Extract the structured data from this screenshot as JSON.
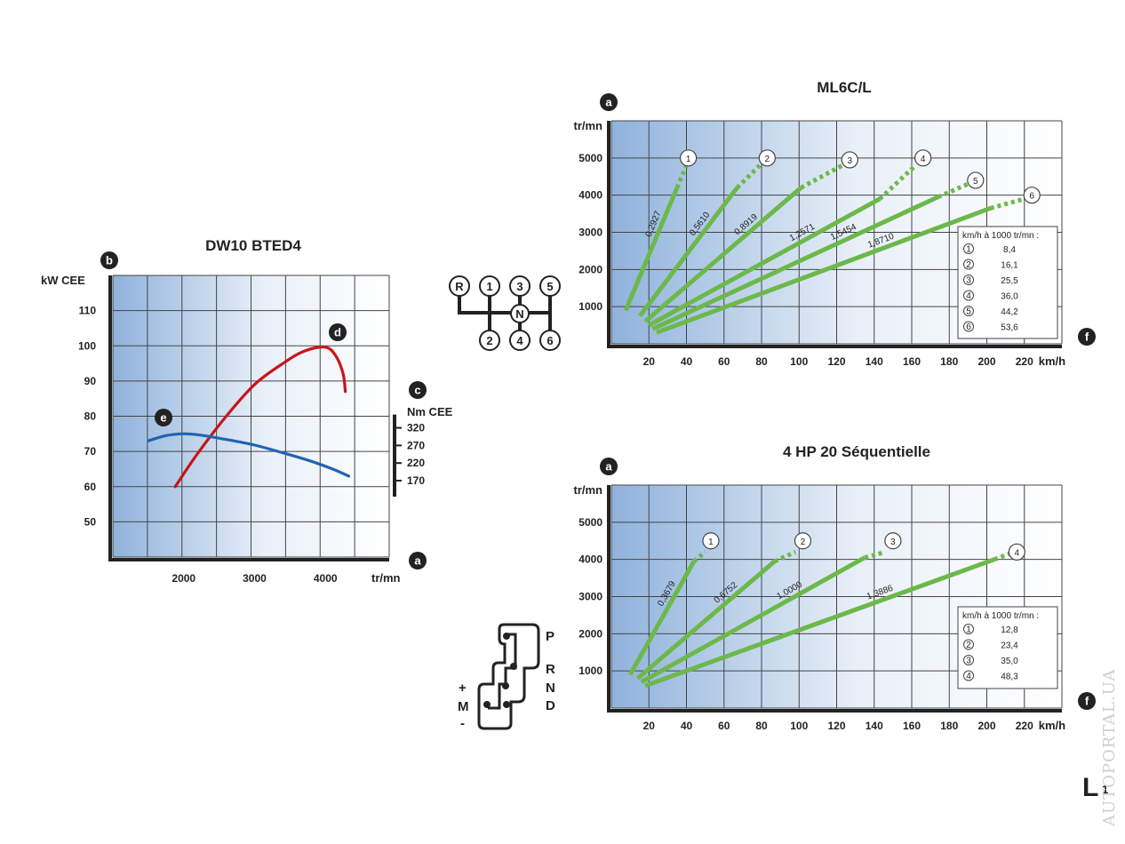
{
  "colors": {
    "grid_line": "#444444",
    "panel_left": "#8fb2dc",
    "panel_right": "#ffffff",
    "power": "#c8151b",
    "torque": "#1f64b0",
    "gear_line": "#6cb84a",
    "badge": "#222222"
  },
  "chart_data": [
    {
      "id": "engine",
      "type": "line",
      "title": "DW10 BTED4",
      "xlabel": "tr/mn",
      "ylabel": "kW CEE",
      "y2label": "Nm CEE",
      "xlim": [
        1000,
        4900
      ],
      "ylim": [
        40,
        120
      ],
      "xticks": [
        2000,
        3000,
        4000
      ],
      "yticks": [
        50,
        60,
        70,
        80,
        90,
        100,
        110
      ],
      "y2ticks": [
        320,
        270,
        220,
        170
      ],
      "y2_from_y": {
        "y_at_170": 61.7,
        "y_per_nm": 0.1
      },
      "badges": {
        "y": "b",
        "y2": "c",
        "x": "a",
        "power": "d",
        "torque": "e"
      },
      "series": [
        {
          "key": "power",
          "points": [
            [
              1880,
              60
            ],
            [
              2200,
              69.5
            ],
            [
              2600,
              80
            ],
            [
              3000,
              89
            ],
            [
              3400,
              95
            ],
            [
              3700,
              98.5
            ],
            [
              4000,
              99.6
            ],
            [
              4150,
              97
            ],
            [
              4250,
              92
            ],
            [
              4280,
              87
            ]
          ]
        },
        {
          "key": "torque",
          "points": [
            [
              1500,
              73
            ],
            [
              1750,
              74.5
            ],
            [
              2000,
              75
            ],
            [
              2250,
              74.6
            ],
            [
              2600,
              73.4
            ],
            [
              3000,
              71.8
            ],
            [
              3400,
              69.6
            ],
            [
              3800,
              67.2
            ],
            [
              4100,
              65
            ],
            [
              4330,
              63
            ]
          ]
        }
      ]
    },
    {
      "id": "manual",
      "type": "line",
      "title": "ML6C/L",
      "xlabel": "km/h",
      "ylabel": "tr/mn",
      "xlim": [
        0,
        240
      ],
      "ylim": [
        0,
        6000
      ],
      "xticks": [
        20,
        40,
        60,
        80,
        100,
        120,
        140,
        160,
        180,
        200,
        220
      ],
      "yticks": [
        1000,
        2000,
        3000,
        4000,
        5000
      ],
      "badges": {
        "y": "a",
        "x": "f"
      },
      "legend": {
        "title": "km/h à 1000 tr/mn :",
        "items": [
          [
            "1",
            "8,4"
          ],
          [
            "2",
            "16,1"
          ],
          [
            "3",
            "25,5"
          ],
          [
            "4",
            "36,0"
          ],
          [
            "5",
            "44,2"
          ],
          [
            "6",
            "53,6"
          ]
        ]
      },
      "gears": [
        {
          "id": "1",
          "ratio": "0,2927",
          "solid": [
            [
              7.6,
              900
            ],
            [
              35,
              4200
            ]
          ],
          "dotted": [
            [
              35,
              4200
            ],
            [
              40,
              4800
            ]
          ],
          "badge": [
            41,
            5000
          ]
        },
        {
          "id": "2",
          "ratio": "0,5610",
          "solid": [
            [
              15.2,
              750
            ],
            [
              67,
              4200
            ]
          ],
          "dotted": [
            [
              67,
              4200
            ],
            [
              79,
              4800
            ]
          ],
          "badge": [
            83,
            5000
          ]
        },
        {
          "id": "3",
          "ratio": "0,8919",
          "solid": [
            [
              18,
              600
            ],
            [
              101,
              4200
            ]
          ],
          "dotted": [
            [
              101,
              4200
            ],
            [
              123,
              4800
            ]
          ],
          "badge": [
            127,
            4950
          ]
        },
        {
          "id": "4",
          "ratio": "1,2571",
          "solid": [
            [
              20,
              500
            ],
            [
              143,
              3900
            ]
          ],
          "dotted": [
            [
              143,
              3900
            ],
            [
              162,
              4800
            ]
          ],
          "badge": [
            166,
            5000
          ]
        },
        {
          "id": "5",
          "ratio": "1,5454",
          "solid": [
            [
              22,
              400
            ],
            [
              174,
              3950
            ]
          ],
          "dotted": [
            [
              174,
              3950
            ],
            [
              190,
              4300
            ]
          ],
          "badge": [
            194,
            4400
          ]
        },
        {
          "id": "6",
          "ratio": "1,8710",
          "solid": [
            [
              24,
              300
            ],
            [
              202,
              3650
            ]
          ],
          "dotted": [
            [
              202,
              3650
            ],
            [
              220,
              3900
            ]
          ],
          "badge": [
            224,
            4000
          ]
        }
      ]
    },
    {
      "id": "auto",
      "type": "line",
      "title": "4 HP 20 Séquentielle",
      "xlabel": "km/h",
      "ylabel": "tr/mn",
      "xlim": [
        0,
        240
      ],
      "ylim": [
        0,
        6000
      ],
      "xticks": [
        20,
        40,
        60,
        80,
        100,
        120,
        140,
        160,
        180,
        200,
        220
      ],
      "yticks": [
        1000,
        2000,
        3000,
        4000,
        5000
      ],
      "badges": {
        "y": "a",
        "x": "f"
      },
      "legend": {
        "title": "km/h à 1000 tr/mn :",
        "items": [
          [
            "1",
            "12,8"
          ],
          [
            "2",
            "23,4"
          ],
          [
            "3",
            "35,0"
          ],
          [
            "4",
            "48,3"
          ]
        ]
      },
      "gears": [
        {
          "id": "1",
          "ratio": "0,3679",
          "solid": [
            [
              10,
              900
            ],
            [
              44,
              3950
            ]
          ],
          "dotted": [
            [
              44,
              3950
            ],
            [
              50,
              4200
            ]
          ],
          "badge": [
            53,
            4500
          ]
        },
        {
          "id": "2",
          "ratio": "0,6752",
          "solid": [
            [
              14,
              800
            ],
            [
              87,
              3950
            ]
          ],
          "dotted": [
            [
              87,
              3950
            ],
            [
              98,
              4200
            ]
          ],
          "badge": [
            102,
            4500
          ]
        },
        {
          "id": "3",
          "ratio": "1,0000",
          "solid": [
            [
              16,
              700
            ],
            [
              135,
              4050
            ]
          ],
          "dotted": [
            [
              135,
              4050
            ],
            [
              146,
              4200
            ]
          ],
          "badge": [
            150,
            4500
          ]
        },
        {
          "id": "4",
          "ratio": "1,3886",
          "solid": [
            [
              18,
              600
            ],
            [
              204,
              4000
            ]
          ],
          "dotted": [
            [
              204,
              4000
            ],
            [
              212,
              4150
            ]
          ],
          "badge": [
            216,
            4200
          ]
        }
      ]
    }
  ],
  "shift_pattern": {
    "positions": [
      "R",
      "1",
      "3",
      "5",
      "2",
      "N",
      "4",
      "6"
    ]
  },
  "auto_selector": {
    "letters": [
      "P",
      "R",
      "N",
      "D"
    ],
    "manual_labels": [
      "+",
      "M",
      "-"
    ]
  },
  "footer": {
    "page_mark": "L",
    "page_sub": "1",
    "watermark": "AUTOPORTAL.UA"
  }
}
